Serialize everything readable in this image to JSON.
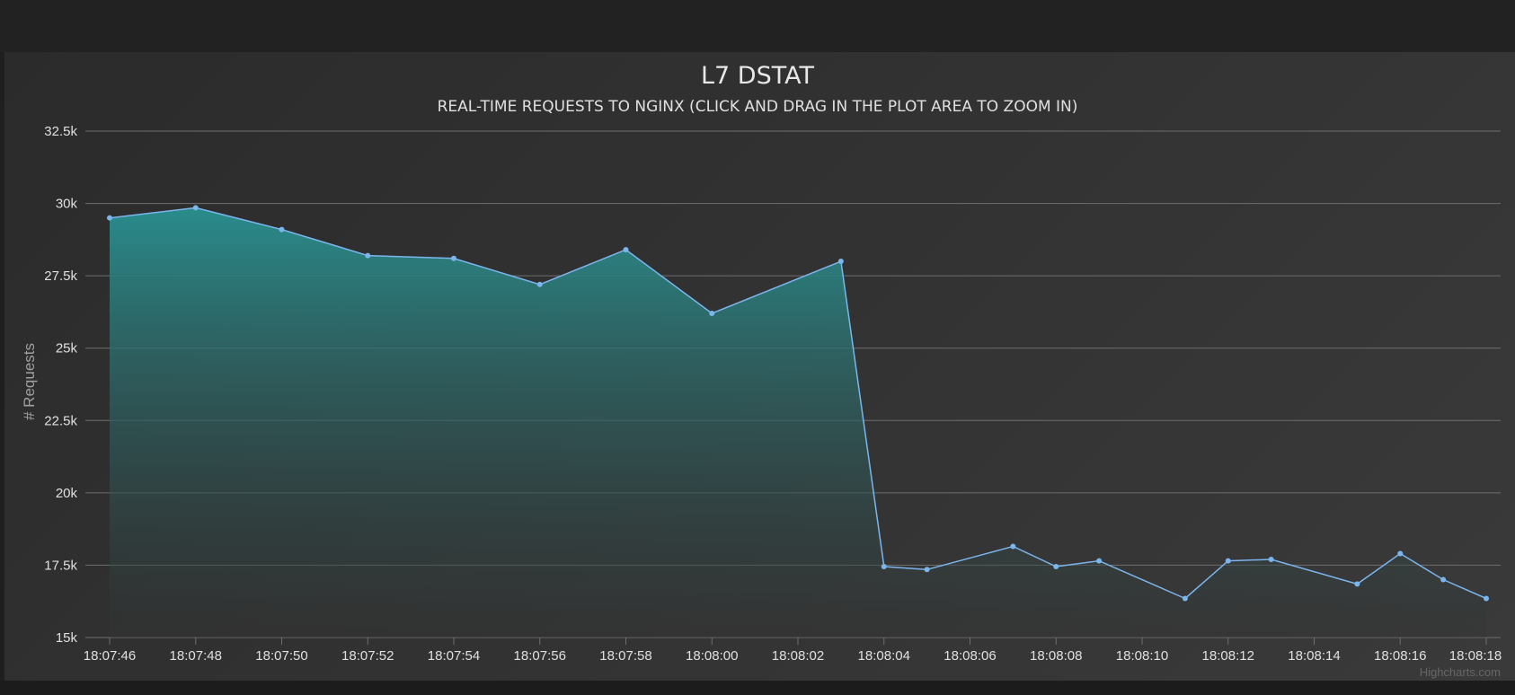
{
  "chart_data": {
    "type": "area",
    "title": "L7 DSTAT",
    "subtitle": "REAL-TIME REQUESTS TO NGINX (CLICK AND DRAG IN THE PLOT AREA TO ZOOM IN)",
    "ylabel": "# Requests",
    "xlabel": "",
    "ylim": [
      15000,
      32500
    ],
    "y_ticks": [
      15000,
      17500,
      20000,
      22500,
      25000,
      27500,
      30000,
      32500
    ],
    "y_tick_labels": [
      "15k",
      "17.5k",
      "20k",
      "22.5k",
      "25k",
      "27.5k",
      "30k",
      "32.5k"
    ],
    "x_tick_labels": [
      "18:07:46",
      "18:07:48",
      "18:07:50",
      "18:07:52",
      "18:07:54",
      "18:07:56",
      "18:07:58",
      "18:08:00",
      "18:08:02",
      "18:08:04",
      "18:08:06",
      "18:08:08",
      "18:08:10",
      "18:08:12",
      "18:08:14",
      "18:08:16",
      "18:08:18"
    ],
    "x_range": [
      "18:07:46",
      "18:08:18"
    ],
    "grid": true,
    "legend": false,
    "series": [
      {
        "color": "#7cb5ec",
        "points": [
          {
            "x": "18:07:46",
            "y": 29500
          },
          {
            "x": "18:07:48",
            "y": 29850
          },
          {
            "x": "18:07:50",
            "y": 29100
          },
          {
            "x": "18:07:52",
            "y": 28200
          },
          {
            "x": "18:07:54",
            "y": 28100
          },
          {
            "x": "18:07:56",
            "y": 27200
          },
          {
            "x": "18:07:58",
            "y": 28400
          },
          {
            "x": "18:08:00",
            "y": 26200
          },
          {
            "x": "18:08:03",
            "y": 28000
          },
          {
            "x": "18:08:04",
            "y": 17450
          },
          {
            "x": "18:08:05",
            "y": 17350
          },
          {
            "x": "18:08:07",
            "y": 18150
          },
          {
            "x": "18:08:08",
            "y": 17450
          },
          {
            "x": "18:08:09",
            "y": 17650
          },
          {
            "x": "18:08:11",
            "y": 16350
          },
          {
            "x": "18:08:12",
            "y": 17650
          },
          {
            "x": "18:08:13",
            "y": 17700
          },
          {
            "x": "18:08:15",
            "y": 16850
          },
          {
            "x": "18:08:16",
            "y": 17900
          },
          {
            "x": "18:08:17",
            "y": 17000
          },
          {
            "x": "18:08:18",
            "y": 16350
          }
        ]
      }
    ],
    "credits": "Highcharts.com"
  },
  "colors": {
    "line": "#7cb5ec",
    "fill_top": "#2a8c8c",
    "fill_bottom": "#333333",
    "grid": "#6e6e6e",
    "text": "#e0e0e0"
  }
}
